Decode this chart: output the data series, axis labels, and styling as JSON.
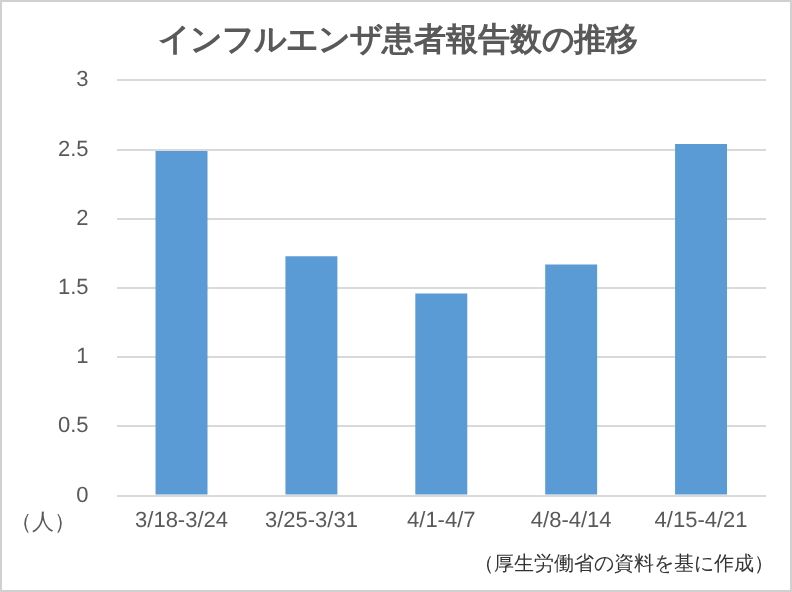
{
  "chart_data": {
    "type": "bar",
    "title": "インフルエンザ患者報告数の推移",
    "ylabel": "（人）",
    "categories": [
      "3/18-3/24",
      "3/25-3/31",
      "4/1-4/7",
      "4/8-4/14",
      "4/15-4/21"
    ],
    "values": [
      2.49,
      1.73,
      1.46,
      1.67,
      2.54
    ],
    "color": "#5b9bd5",
    "ylim": [
      0,
      3
    ],
    "yticks": [
      0,
      0.5,
      1,
      1.5,
      2,
      2.5,
      3
    ],
    "grid": "y",
    "legend": false,
    "annotations": [
      "（厚生労働省の資料を基に作成）"
    ]
  }
}
